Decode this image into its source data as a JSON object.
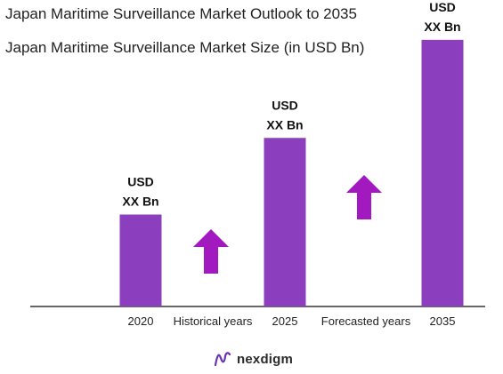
{
  "chart_data": {
    "type": "bar",
    "title": "Japan Maritime Surveillance Market Outlook to 2035",
    "subtitle": "Japan Maritime Surveillance Market Size (in USD Bn)",
    "categories": [
      "2020",
      "2025",
      "2035"
    ],
    "values": [
      30,
      55,
      87
    ],
    "ylim": [
      0,
      100
    ],
    "data_labels": [
      [
        "USD",
        "XX Bn"
      ],
      [
        "USD",
        "XX Bn"
      ],
      [
        "USD",
        "XX Bn"
      ]
    ],
    "period_labels": [
      "Historical years",
      "Forecasted years"
    ],
    "grid": false,
    "legend": "none",
    "bar_color": "#8B3FBF",
    "arrow_color": "#A21ABF",
    "axis_color": "#333333"
  },
  "brand": {
    "name": "nexdigm",
    "icon": "nexdigm-logo-icon",
    "color": "#6b2fb3"
  }
}
